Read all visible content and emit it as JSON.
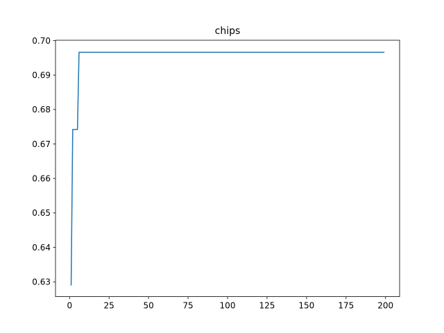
{
  "chart_data": {
    "type": "line",
    "title": "chips",
    "xlabel": "",
    "ylabel": "",
    "xlim": [
      -8.9,
      208.9
    ],
    "ylim": [
      0.6257,
      0.7001
    ],
    "xticks": [
      0,
      25,
      50,
      75,
      100,
      125,
      150,
      175,
      200
    ],
    "yticks": [
      0.63,
      0.64,
      0.65,
      0.66,
      0.67,
      0.68,
      0.69,
      0.7
    ],
    "ytick_labels": [
      "0.63",
      "0.64",
      "0.65",
      "0.66",
      "0.67",
      "0.68",
      "0.69",
      "0.70"
    ],
    "grid": false,
    "series": [
      {
        "color": "#1f77b4",
        "points": [
          [
            1,
            0.6291
          ],
          [
            2,
            0.6742
          ],
          [
            3,
            0.6742
          ],
          [
            4,
            0.6742
          ],
          [
            5,
            0.6742
          ],
          [
            6,
            0.6966
          ],
          [
            199,
            0.6966
          ]
        ]
      }
    ]
  }
}
